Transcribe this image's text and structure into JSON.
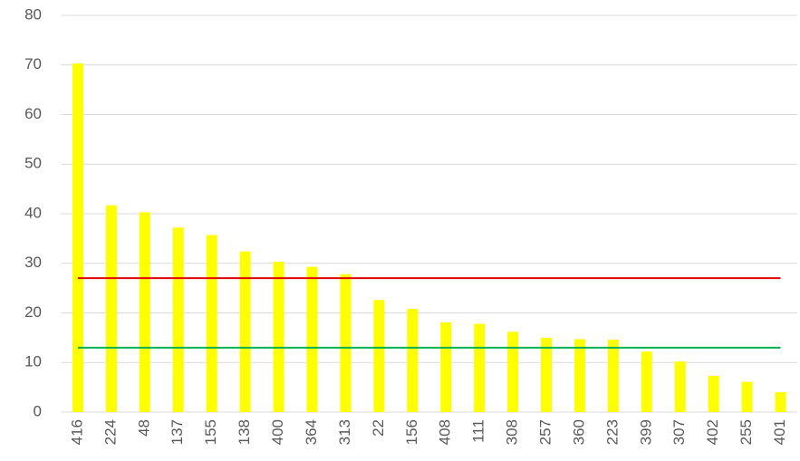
{
  "chart_data": {
    "type": "bar",
    "categories": [
      "416",
      "224",
      "48",
      "137",
      "155",
      "138",
      "400",
      "364",
      "313",
      "22",
      "156",
      "408",
      "111",
      "308",
      "257",
      "360",
      "223",
      "399",
      "307",
      "402",
      "255",
      "401"
    ],
    "values": [
      70.3,
      41.7,
      40.3,
      37.2,
      35.7,
      32.4,
      30.3,
      29.3,
      27.8,
      22.6,
      20.8,
      18.1,
      17.8,
      16.2,
      15.0,
      14.7,
      14.6,
      12.2,
      10.2,
      7.3,
      6.1,
      4.0
    ],
    "color": "#ffff00",
    "ylim": [
      0,
      80
    ],
    "yticks": [
      0,
      10,
      20,
      30,
      40,
      50,
      60,
      70,
      80
    ],
    "grid": true,
    "reference_lines": [
      {
        "value": 27,
        "color": "#e00000"
      },
      {
        "value": 13,
        "color": "#00b050"
      }
    ]
  }
}
